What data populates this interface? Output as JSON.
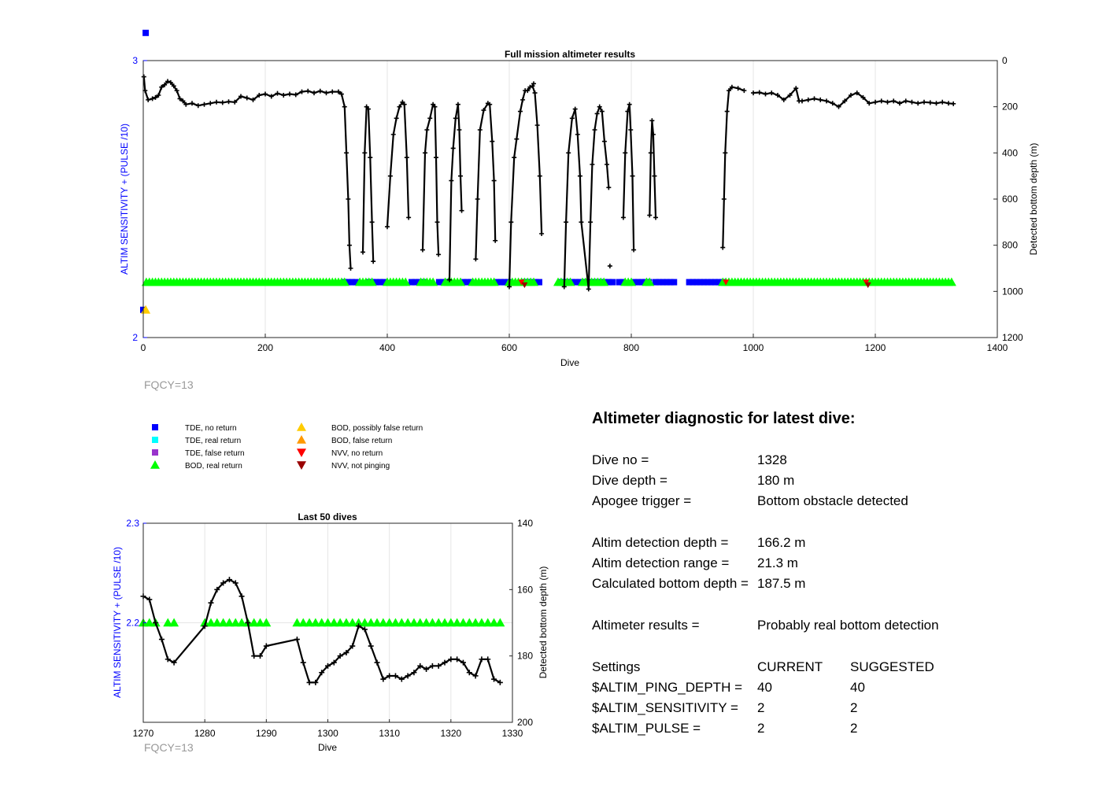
{
  "colors": {
    "left_axis": "#0000ff",
    "tde_no_return": "#0000ff",
    "tde_real_return": "#00ffff",
    "tde_false_return": "#9933cc",
    "bod_real_return": "#00ff00",
    "bod_possibly_false": "#ffcc00",
    "bod_false": "#ff9900",
    "nvv_no_return": "#ff0000",
    "nvv_not_pinging": "#990000",
    "depth_line": "#000000",
    "fqcy": "#999999"
  },
  "legend": {
    "items": [
      {
        "label": "TDE, no return",
        "marker": "square",
        "color": "#0000ff"
      },
      {
        "label": "TDE, real return",
        "marker": "square",
        "color": "#00ffff"
      },
      {
        "label": "TDE, false return",
        "marker": "square",
        "color": "#9933cc"
      },
      {
        "label": "BOD, real return",
        "marker": "triangle-up",
        "color": "#00ff00"
      },
      {
        "label": "BOD, possibly false return",
        "marker": "triangle-up",
        "color": "#ffcc00"
      },
      {
        "label": "BOD, false return",
        "marker": "triangle-up",
        "color": "#ff9900"
      },
      {
        "label": "NVV, no return",
        "marker": "triangle-down",
        "color": "#ff0000"
      },
      {
        "label": "NVV, not pinging",
        "marker": "triangle-down",
        "color": "#990000"
      }
    ]
  },
  "chart_data": [
    {
      "type": "line",
      "title": "Full mission altimeter results",
      "xlabel": "Dive",
      "ylabel_left": "ALTIM SENSITIVITY + (PULSE /10)",
      "ylabel_right": "Detected bottom depth (m)",
      "xlim": [
        0,
        1400
      ],
      "ylim_left": [
        2,
        3
      ],
      "ylim_right": [
        1200,
        0
      ],
      "right_axis_reversed": true,
      "grid": true,
      "x_ticks": [
        "0",
        "200",
        "400",
        "600",
        "800",
        "1000",
        "1200",
        "1400"
      ],
      "y_left_ticks": [
        "2",
        "3"
      ],
      "y_right_ticks": [
        "0",
        "200",
        "400",
        "600",
        "800",
        "1000",
        "1200"
      ],
      "annotation": "FQCY=13",
      "depth_series": [
        [
          1,
          70
        ],
        [
          3,
          130
        ],
        [
          8,
          170
        ],
        [
          15,
          165
        ],
        [
          20,
          160
        ],
        [
          25,
          150
        ],
        [
          30,
          115
        ],
        [
          35,
          105
        ],
        [
          40,
          90
        ],
        [
          45,
          95
        ],
        [
          50,
          110
        ],
        [
          55,
          130
        ],
        [
          60,
          165
        ],
        [
          65,
          175
        ],
        [
          70,
          190
        ],
        [
          80,
          185
        ],
        [
          90,
          195
        ],
        [
          100,
          190
        ],
        [
          110,
          185
        ],
        [
          120,
          180
        ],
        [
          130,
          182
        ],
        [
          140,
          178
        ],
        [
          150,
          180
        ],
        [
          160,
          155
        ],
        [
          170,
          162
        ],
        [
          180,
          170
        ],
        [
          190,
          150
        ],
        [
          200,
          145
        ],
        [
          210,
          155
        ],
        [
          220,
          142
        ],
        [
          230,
          150
        ],
        [
          240,
          145
        ],
        [
          250,
          148
        ],
        [
          260,
          135
        ],
        [
          270,
          132
        ],
        [
          280,
          140
        ],
        [
          290,
          132
        ],
        [
          300,
          140
        ],
        [
          310,
          135
        ],
        [
          320,
          135
        ],
        [
          325,
          145
        ],
        [
          330,
          200
        ],
        [
          333,
          400
        ],
        [
          336,
          600
        ],
        [
          338,
          800
        ],
        [
          340,
          900
        ],
        [
          360,
          830
        ],
        [
          363,
          400
        ],
        [
          366,
          200
        ],
        [
          369,
          210
        ],
        [
          372,
          420
        ],
        [
          375,
          700
        ],
        [
          377,
          870
        ],
        [
          400,
          720
        ],
        [
          405,
          500
        ],
        [
          410,
          320
        ],
        [
          415,
          250
        ],
        [
          420,
          200
        ],
        [
          425,
          180
        ],
        [
          428,
          190
        ],
        [
          432,
          420
        ],
        [
          435,
          680
        ],
        [
          458,
          820
        ],
        [
          462,
          400
        ],
        [
          465,
          300
        ],
        [
          470,
          250
        ],
        [
          475,
          190
        ],
        [
          478,
          200
        ],
        [
          480,
          420
        ],
        [
          482,
          700
        ],
        [
          484,
          840
        ],
        [
          502,
          950
        ],
        [
          505,
          520
        ],
        [
          508,
          380
        ],
        [
          512,
          250
        ],
        [
          516,
          190
        ],
        [
          518,
          300
        ],
        [
          520,
          500
        ],
        [
          522,
          650
        ],
        [
          545,
          860
        ],
        [
          548,
          600
        ],
        [
          552,
          300
        ],
        [
          558,
          215
        ],
        [
          565,
          185
        ],
        [
          568,
          190
        ],
        [
          572,
          350
        ],
        [
          575,
          520
        ],
        [
          577,
          780
        ],
        [
          600,
          980
        ],
        [
          603,
          700
        ],
        [
          608,
          420
        ],
        [
          612,
          340
        ],
        [
          618,
          220
        ],
        [
          622,
          170
        ],
        [
          626,
          130
        ],
        [
          630,
          130
        ],
        [
          634,
          115
        ],
        [
          638,
          110
        ],
        [
          642,
          140
        ],
        [
          646,
          280
        ],
        [
          650,
          500
        ],
        [
          653,
          750
        ],
        [
          690,
          980
        ],
        [
          693,
          700
        ],
        [
          697,
          400
        ],
        [
          703,
          250
        ],
        [
          708,
          210
        ],
        [
          712,
          320
        ],
        [
          716,
          500
        ],
        [
          718,
          700
        ],
        [
          730,
          990
        ],
        [
          733,
          700
        ],
        [
          736,
          450
        ],
        [
          740,
          300
        ],
        [
          744,
          230
        ],
        [
          748,
          200
        ],
        [
          752,
          220
        ],
        [
          756,
          350
        ],
        [
          760,
          450
        ],
        [
          763,
          550
        ],
        [
          787,
          680
        ],
        [
          790,
          400
        ],
        [
          794,
          220
        ],
        [
          797,
          190
        ],
        [
          799,
          300
        ],
        [
          802,
          500
        ],
        [
          804,
          820
        ],
        [
          830,
          670
        ],
        [
          832,
          400
        ],
        [
          834,
          260
        ],
        [
          836,
          320
        ],
        [
          838,
          500
        ],
        [
          840,
          680
        ],
        [
          950,
          810
        ],
        [
          952,
          600
        ],
        [
          954,
          400
        ],
        [
          957,
          220
        ],
        [
          960,
          130
        ],
        [
          965,
          115
        ],
        [
          975,
          120
        ],
        [
          985,
          130
        ],
        [
          1000,
          140
        ],
        [
          1010,
          138
        ],
        [
          1020,
          145
        ],
        [
          1030,
          140
        ],
        [
          1040,
          150
        ],
        [
          1050,
          170
        ],
        [
          1060,
          150
        ],
        [
          1070,
          120
        ],
        [
          1075,
          175
        ],
        [
          1080,
          175
        ],
        [
          1090,
          170
        ],
        [
          1100,
          165
        ],
        [
          1110,
          170
        ],
        [
          1120,
          175
        ],
        [
          1130,
          185
        ],
        [
          1140,
          200
        ],
        [
          1150,
          175
        ],
        [
          1160,
          150
        ],
        [
          1170,
          140
        ],
        [
          1180,
          160
        ],
        [
          1190,
          185
        ],
        [
          1200,
          180
        ],
        [
          1210,
          175
        ],
        [
          1220,
          180
        ],
        [
          1230,
          175
        ],
        [
          1240,
          185
        ],
        [
          1250,
          175
        ],
        [
          1260,
          180
        ],
        [
          1270,
          185
        ],
        [
          1280,
          180
        ],
        [
          1290,
          182
        ],
        [
          1300,
          185
        ],
        [
          1310,
          180
        ],
        [
          1320,
          185
        ],
        [
          1328,
          187
        ]
      ],
      "outliers": [
        [
          765,
          890
        ],
        [
          640,
          100
        ]
      ],
      "tde_no_return_y": 2.2,
      "tde_no_return_ranges": [
        [
          330,
          350
        ],
        [
          370,
          395
        ],
        [
          440,
          460
        ],
        [
          485,
          500
        ],
        [
          525,
          540
        ],
        [
          580,
          600
        ],
        [
          625,
          650
        ],
        [
          685,
          770
        ],
        [
          780,
          790
        ],
        [
          805,
          830
        ],
        [
          840,
          870
        ],
        [
          895,
          950
        ]
      ],
      "tde_extra": [
        [
          4,
          3.1
        ],
        [
          0,
          2.1
        ]
      ],
      "bod_real_return_y": 2.2,
      "bod_real_return_ranges": [
        [
          5,
          330
        ],
        [
          355,
          375
        ],
        [
          400,
          430
        ],
        [
          455,
          478
        ],
        [
          495,
          520
        ],
        [
          540,
          575
        ],
        [
          600,
          640
        ],
        [
          680,
          700
        ],
        [
          720,
          755
        ],
        [
          790,
          800
        ],
        [
          825,
          830
        ],
        [
          950,
          1328
        ]
      ],
      "bod_possibly_false": [
        [
          4,
          2.1
        ]
      ],
      "nvv_no_return": [
        [
          620,
          2.2
        ],
        [
          955,
          2.2
        ],
        [
          1185,
          2.2
        ]
      ],
      "nvv_not_pinging": [
        [
          625,
          2.19
        ],
        [
          1188,
          2.19
        ]
      ]
    },
    {
      "type": "line",
      "title": "Last 50 dives",
      "xlabel": "Dive",
      "ylabel_left": "ALTIM SENSITIVITY + (PULSE /10)",
      "ylabel_right": "Detected bottom depth (m)",
      "xlim": [
        1270,
        1330
      ],
      "ylim_left": [
        2.1,
        2.3
      ],
      "ylim_right": [
        200,
        140
      ],
      "right_axis_reversed": true,
      "grid": true,
      "x_ticks": [
        "1270",
        "1280",
        "1290",
        "1300",
        "1310",
        "1320",
        "1330"
      ],
      "y_left_ticks": [
        "2.3",
        "2.2"
      ],
      "y_right_ticks": [
        "140",
        "160",
        "180",
        "200"
      ],
      "annotation": "FQCY=13",
      "depth_series": [
        [
          1270,
          162
        ],
        [
          1271,
          163
        ],
        [
          1272,
          170
        ],
        [
          1273,
          175
        ],
        [
          1274,
          181
        ],
        [
          1275,
          182
        ],
        [
          1280,
          171
        ],
        [
          1281,
          164
        ],
        [
          1282,
          160
        ],
        [
          1283,
          158
        ],
        [
          1284,
          157
        ],
        [
          1285,
          158
        ],
        [
          1286,
          162
        ],
        [
          1287,
          170
        ],
        [
          1288,
          180
        ],
        [
          1289,
          180
        ],
        [
          1290,
          177
        ],
        [
          1295,
          175
        ],
        [
          1296,
          182
        ],
        [
          1297,
          188
        ],
        [
          1298,
          188
        ],
        [
          1299,
          185
        ],
        [
          1300,
          183
        ],
        [
          1301,
          182
        ],
        [
          1302,
          180
        ],
        [
          1303,
          179
        ],
        [
          1304,
          177
        ],
        [
          1305,
          171
        ],
        [
          1306,
          172
        ],
        [
          1307,
          177
        ],
        [
          1308,
          182
        ],
        [
          1309,
          187
        ],
        [
          1310,
          186
        ],
        [
          1311,
          186
        ],
        [
          1312,
          187
        ],
        [
          1313,
          186
        ],
        [
          1314,
          185
        ],
        [
          1315,
          183
        ],
        [
          1316,
          184
        ],
        [
          1317,
          183
        ],
        [
          1318,
          183
        ],
        [
          1319,
          182
        ],
        [
          1320,
          181
        ],
        [
          1321,
          181
        ],
        [
          1322,
          182
        ],
        [
          1323,
          185
        ],
        [
          1324,
          186
        ],
        [
          1325,
          181
        ],
        [
          1326,
          181
        ],
        [
          1327,
          187
        ],
        [
          1328,
          188
        ]
      ],
      "bod_real_return_y": 2.2,
      "bod_points": [
        1270,
        1271,
        1272,
        1274,
        1275,
        1280,
        1281,
        1282,
        1283,
        1284,
        1285,
        1286,
        1287,
        1288,
        1289,
        1290,
        1295,
        1296,
        1297,
        1298,
        1299,
        1300,
        1301,
        1302,
        1303,
        1304,
        1305,
        1306,
        1307,
        1308,
        1309,
        1310,
        1311,
        1312,
        1313,
        1314,
        1315,
        1316,
        1317,
        1318,
        1319,
        1320,
        1321,
        1322,
        1323,
        1324,
        1325,
        1326,
        1327,
        1328
      ]
    }
  ],
  "diagnostic": {
    "title": "Altimeter diagnostic for latest dive:",
    "rows": [
      {
        "key": "Dive no =",
        "v1": "1328",
        "v2": ""
      },
      {
        "key": "Dive depth =",
        "v1": "180 m",
        "v2": ""
      },
      {
        "key": "Apogee trigger =",
        "v1": "Bottom obstacle detected",
        "v2": ""
      },
      {
        "key": "Altim detection depth =",
        "v1": "166.2 m",
        "v2": ""
      },
      {
        "key": "Altim detection range =",
        "v1": "21.3 m",
        "v2": ""
      },
      {
        "key": "Calculated bottom depth =",
        "v1": "187.5 m",
        "v2": ""
      },
      {
        "key": "Altimeter results =",
        "v1": "Probably real bottom detection",
        "v2": ""
      },
      {
        "key": "Settings",
        "v1": "CURRENT",
        "v2": "SUGGESTED"
      },
      {
        "key": "$ALTIM_PING_DEPTH =",
        "v1": "40",
        "v2": "40"
      },
      {
        "key": "$ALTIM_SENSITIVITY =",
        "v1": "2",
        "v2": "2"
      },
      {
        "key": "$ALTIM_PULSE =",
        "v1": "2",
        "v2": "2"
      }
    ]
  }
}
